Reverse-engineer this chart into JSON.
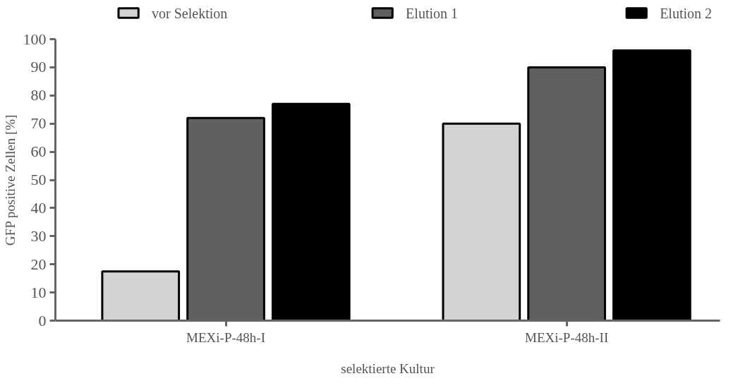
{
  "chart_data": {
    "type": "bar",
    "xlabel": "selektierte Kultur",
    "ylabel": "GFP positive Zellen [%]",
    "categories": [
      "MEXi-P-48h-I",
      "MEXi-P-48h-II"
    ],
    "series": [
      {
        "name": "vor Selektion",
        "color": "#d3d3d3",
        "values": [
          17.5,
          70
        ]
      },
      {
        "name": "Elution 1",
        "color": "#606060",
        "values": [
          72,
          90
        ]
      },
      {
        "name": "Elution 2",
        "color": "#000000",
        "values": [
          77,
          96
        ]
      }
    ],
    "ylim": [
      0,
      100
    ],
    "yticks": [
      0,
      10,
      20,
      30,
      40,
      50,
      60,
      70,
      80,
      90,
      100
    ],
    "grid": false,
    "legend": "top"
  }
}
